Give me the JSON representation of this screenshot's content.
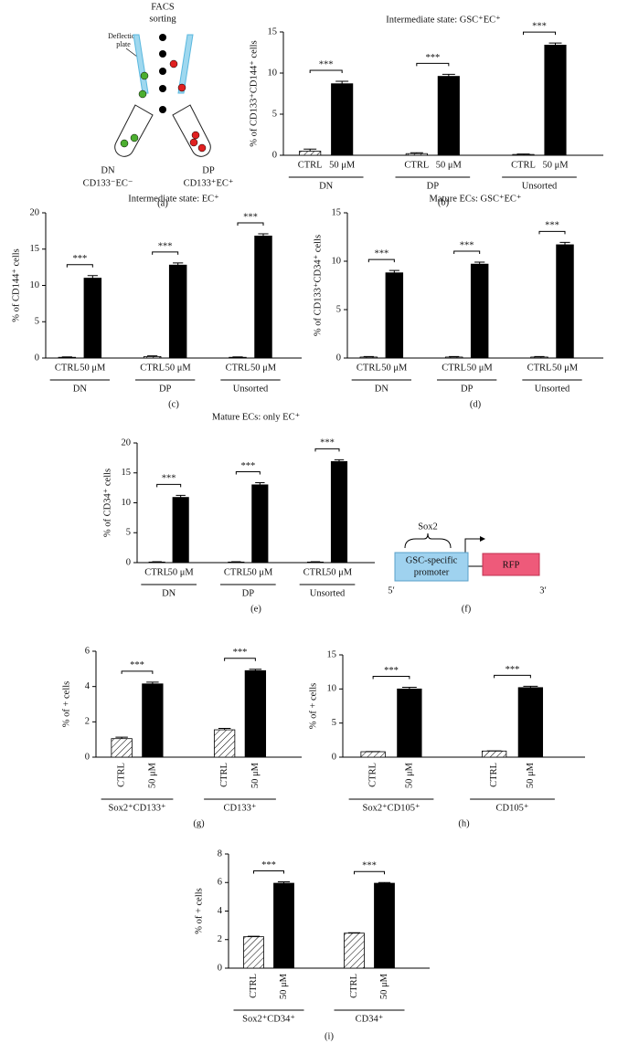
{
  "diagram_a": {
    "title_lines": [
      "FACS",
      "sorting"
    ],
    "plate_label_lines": [
      "Deflection",
      "plate"
    ],
    "left_tube": [
      "DN",
      "CD133⁻EC⁻"
    ],
    "right_tube": [
      "DP",
      "CD133⁺EC⁺"
    ],
    "panel_label": "(a)"
  },
  "diagram_f": {
    "tf": "Sox2",
    "promoter_lines": [
      "GSC-specific",
      "promoter"
    ],
    "reporter": "RFP",
    "end5": "5′",
    "end3": "3′",
    "panel_label": "(f)"
  },
  "chart_data": [
    {
      "type": "bar",
      "panel_label": "(b)",
      "title": "Intermediate state: GSC⁺EC⁺",
      "y_label": "% of CD133⁺CD144⁺ cells",
      "categories": [
        "CTRL",
        "50 μM",
        "CTRL",
        "50 μM",
        "CTRL",
        "50 μM"
      ],
      "groups": [
        "DN",
        "DP",
        "Unsorted"
      ],
      "values": [
        0.5,
        8.7,
        0.2,
        9.6,
        0.1,
        13.4
      ],
      "errors": [
        0.25,
        0.3,
        0.1,
        0.25,
        0.05,
        0.25
      ],
      "significance": [
        "***",
        "***",
        "***"
      ],
      "color": "#000000",
      "ctrl_hatched": true,
      "tick_rotation": 0,
      "ylim": [
        0,
        15
      ],
      "yticks": [
        0,
        5,
        10,
        15
      ]
    },
    {
      "type": "bar",
      "panel_label": "(c)",
      "title": "Intermediate state: EC⁺",
      "y_label": "% of CD144⁺ cells",
      "categories": [
        "CTRL",
        "50 μM",
        "CTRL",
        "50 μM",
        "CTRL",
        "50 μM"
      ],
      "groups": [
        "DN",
        "DP",
        "Unsorted"
      ],
      "values": [
        0.1,
        11.0,
        0.2,
        12.8,
        0.1,
        16.8
      ],
      "errors": [
        0.05,
        0.35,
        0.1,
        0.3,
        0.05,
        0.3
      ],
      "significance": [
        "***",
        "***",
        "***"
      ],
      "color": "#000000",
      "ctrl_hatched": true,
      "tick_rotation": 0,
      "ylim": [
        0,
        20
      ],
      "yticks": [
        0,
        5,
        10,
        15,
        20
      ]
    },
    {
      "type": "bar",
      "panel_label": "(d)",
      "title": "Mature ECs: GSC⁺EC⁺",
      "y_label": "% of CD133⁺CD34⁺ cells",
      "categories": [
        "CTRL",
        "50 μM",
        "CTRL",
        "50 μM",
        "CTRL",
        "50 μM"
      ],
      "groups": [
        "DN",
        "DP",
        "Unsorted"
      ],
      "values": [
        0.1,
        8.8,
        0.1,
        9.7,
        0.1,
        11.7
      ],
      "errors": [
        0.05,
        0.25,
        0.05,
        0.2,
        0.05,
        0.25
      ],
      "significance": [
        "***",
        "***",
        "***"
      ],
      "color": "#000000",
      "ctrl_hatched": true,
      "tick_rotation": 0,
      "ylim": [
        0,
        15
      ],
      "yticks": [
        0,
        5,
        10,
        15
      ]
    },
    {
      "type": "bar",
      "panel_label": "(e)",
      "title": "Mature ECs: only EC⁺",
      "y_label": "% of CD34⁺ cells",
      "categories": [
        "CTRL",
        "50 μM",
        "CTRL",
        "50 μM",
        "CTRL",
        "50 μM"
      ],
      "groups": [
        "DN",
        "DP",
        "Unsorted"
      ],
      "values": [
        0.1,
        10.9,
        0.1,
        13.0,
        0.1,
        16.9
      ],
      "errors": [
        0.05,
        0.35,
        0.05,
        0.35,
        0.05,
        0.3
      ],
      "significance": [
        "***",
        "***",
        "***"
      ],
      "color": "#000000",
      "ctrl_hatched": true,
      "tick_rotation": 0,
      "ylim": [
        0,
        20
      ],
      "yticks": [
        0,
        5,
        10,
        15,
        20
      ]
    },
    {
      "type": "bar",
      "panel_label": "(g)",
      "y_label": "% of + cells",
      "categories": [
        "CTRL",
        "50 μM",
        "CTRL",
        "50 μM"
      ],
      "groups": [
        "Sox2⁺CD133⁺",
        "CD133⁺"
      ],
      "values": [
        1.05,
        4.15,
        1.55,
        4.9
      ],
      "errors": [
        0.08,
        0.1,
        0.08,
        0.08
      ],
      "significance": [
        "***",
        "***"
      ],
      "color": "#000000",
      "ctrl_hatched": true,
      "tick_rotation": 90,
      "ylim": [
        0,
        6
      ],
      "yticks": [
        0,
        2,
        4,
        6
      ]
    },
    {
      "type": "bar",
      "panel_label": "(h)",
      "y_label": "% of + cells",
      "categories": [
        "CTRL",
        "50 μM",
        "CTRL",
        "50 μM"
      ],
      "groups": [
        "Sox2⁺CD105⁺",
        "CD105⁺"
      ],
      "values": [
        0.8,
        10.0,
        0.9,
        10.2
      ],
      "errors": [
        0.02,
        0.25,
        0.02,
        0.2
      ],
      "significance": [
        "***",
        "***"
      ],
      "color": "#000000",
      "ctrl_hatched": true,
      "tick_rotation": 90,
      "ylim": [
        0,
        15
      ],
      "yticks": [
        0,
        5,
        10,
        15
      ]
    },
    {
      "type": "bar",
      "panel_label": "(i)",
      "y_label": "% of + cells",
      "categories": [
        "CTRL",
        "50 μM",
        "CTRL",
        "50 μM"
      ],
      "groups": [
        "Sox2⁺CD34⁺",
        "CD34⁺"
      ],
      "values": [
        2.2,
        5.95,
        2.45,
        5.95
      ],
      "errors": [
        0.03,
        0.1,
        0.03,
        0.05
      ],
      "significance": [
        "***",
        "***"
      ],
      "color": "#000000",
      "ctrl_hatched": true,
      "tick_rotation": 90,
      "ylim": [
        0,
        8
      ],
      "yticks": [
        0,
        2,
        4,
        6,
        8
      ]
    }
  ]
}
